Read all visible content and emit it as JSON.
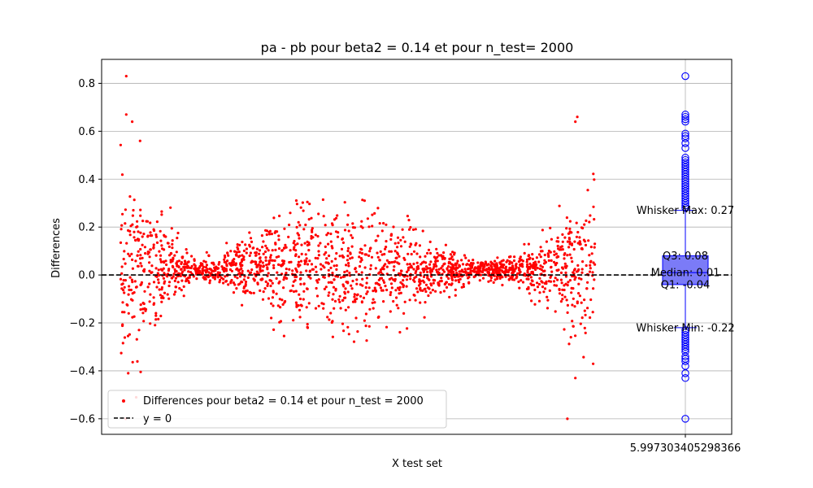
{
  "chart_data": {
    "type": "scatter",
    "title": "pa - pb  pour beta2 = 0.14 et pour n_test= 2000",
    "xlabel": "X test set",
    "ylabel": "Differences",
    "ylim": [
      -0.665,
      0.9
    ],
    "yticks": [
      -0.6,
      -0.4,
      -0.2,
      0.0,
      0.2,
      0.4,
      0.6,
      0.8
    ],
    "xtick_label": "5.997303405298366",
    "grid": "horizontal",
    "legend_position": "lower-left",
    "legend": [
      {
        "label": "Differences pour beta2 = 0.14 et pour n_test = 2000",
        "marker": "dot",
        "color": "#ff0000"
      },
      {
        "label": "y = 0",
        "marker": "dashed-line",
        "color": "#000000"
      }
    ],
    "scatter_series": {
      "name": "Differences pour beta2 = 0.14 et pour n_test = 2000",
      "color": "#ff0000",
      "n_points": 2000,
      "x_range": [
        -6.0,
        6.0
      ],
      "envelope": [
        {
          "x": -6.0,
          "amplitude": 0.35
        },
        {
          "x": -5.0,
          "amplitude": 0.2
        },
        {
          "x": -4.0,
          "amplitude": 0.03
        },
        {
          "x": -3.0,
          "amplitude": 0.1
        },
        {
          "x": -2.0,
          "amplitude": 0.2
        },
        {
          "x": -1.0,
          "amplitude": 0.25
        },
        {
          "x": 0.0,
          "amplitude": 0.22
        },
        {
          "x": 1.0,
          "amplitude": 0.17
        },
        {
          "x": 2.0,
          "amplitude": 0.1
        },
        {
          "x": 3.0,
          "amplitude": 0.03
        },
        {
          "x": 4.0,
          "amplitude": 0.05
        },
        {
          "x": 5.0,
          "amplitude": 0.15
        },
        {
          "x": 6.0,
          "amplitude": 0.35
        }
      ],
      "highlight_points": [
        {
          "x": -5.85,
          "y": 0.83
        },
        {
          "x": -5.85,
          "y": 0.67
        },
        {
          "x": -5.7,
          "y": 0.64
        },
        {
          "x": -5.5,
          "y": 0.56
        },
        {
          "x": -5.8,
          "y": -0.41
        },
        {
          "x": 5.55,
          "y": 0.66
        },
        {
          "x": 5.5,
          "y": 0.64
        },
        {
          "x": 5.3,
          "y": -0.6
        },
        {
          "x": 5.5,
          "y": -0.43
        }
      ]
    },
    "boxplot": {
      "position_label": "5.997303405298366",
      "q1": -0.04,
      "median": 0.01,
      "q3": 0.08,
      "whisker_min": -0.22,
      "whisker_max": 0.27,
      "color": "#0000ff",
      "fill": "#7b7bf7",
      "outliers": [
        0.83,
        0.67,
        0.66,
        0.65,
        0.64,
        0.59,
        0.58,
        0.57,
        0.55,
        0.53,
        0.49,
        0.48,
        0.47,
        0.46,
        0.45,
        0.44,
        0.43,
        0.42,
        0.41,
        0.4,
        0.39,
        0.38,
        0.37,
        0.36,
        0.35,
        0.34,
        0.33,
        0.32,
        0.31,
        0.3,
        0.29,
        0.28,
        -0.23,
        -0.24,
        -0.25,
        -0.26,
        -0.27,
        -0.28,
        -0.29,
        -0.3,
        -0.31,
        -0.32,
        -0.34,
        -0.35,
        -0.36,
        -0.38,
        -0.41,
        -0.43,
        -0.6
      ],
      "annotations": {
        "whisker_max": "Whisker Max: 0.27",
        "q3": "Q3: 0.08",
        "median": "Median: 0.01",
        "q1": "Q1: -0.04",
        "whisker_min": "Whisker Min: -0.22"
      }
    },
    "reference_line": {
      "y": 0,
      "style": "dashed",
      "color": "#000000",
      "label": "y = 0"
    }
  }
}
